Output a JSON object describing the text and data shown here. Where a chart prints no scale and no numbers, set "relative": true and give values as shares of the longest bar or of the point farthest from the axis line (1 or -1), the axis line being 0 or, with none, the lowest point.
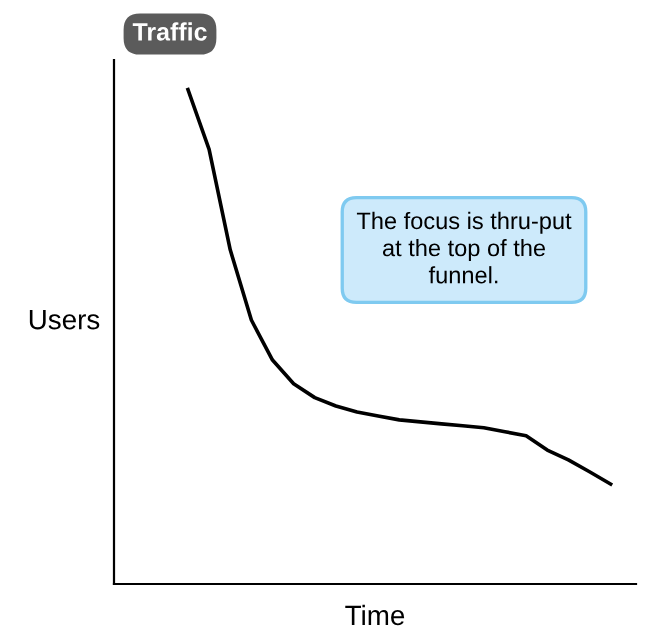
{
  "chart_data": {
    "type": "line",
    "relative": true,
    "xlabel": "Time",
    "ylabel": "Users",
    "categories": [
      null,
      null,
      null,
      null,
      null,
      null,
      null,
      null,
      null,
      null,
      null,
      null,
      null,
      null,
      null,
      null,
      null,
      null,
      null,
      null,
      null
    ],
    "series": [
      {
        "color": "#000000",
        "values": [
          1,
          0.879,
          0.676,
          0.534,
          0.453,
          0.405,
          0.377,
          0.36,
          0.348,
          0.34,
          0.332,
          0.328,
          0.324,
          0.32,
          0.316,
          0.308,
          0.3,
          0.271,
          0.251,
          0.227,
          0.202
        ]
      }
    ],
    "annotations": [
      "Traffic",
      "The focus is thru-put\nat the top of the\nfunnel."
    ],
    "grid": false,
    "legend": false,
    "marker": "none",
    "line_style": "solid"
  }
}
